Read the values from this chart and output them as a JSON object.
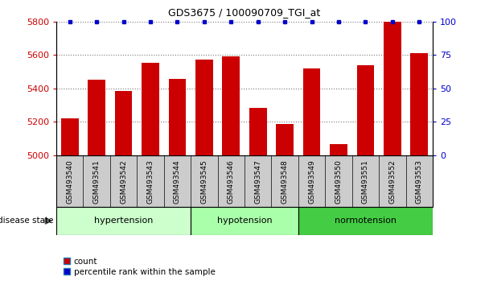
{
  "title": "GDS3675 / 100090709_TGI_at",
  "samples": [
    "GSM493540",
    "GSM493541",
    "GSM493542",
    "GSM493543",
    "GSM493544",
    "GSM493545",
    "GSM493546",
    "GSM493547",
    "GSM493548",
    "GSM493549",
    "GSM493550",
    "GSM493551",
    "GSM493552",
    "GSM493553"
  ],
  "counts": [
    5220,
    5450,
    5385,
    5555,
    5455,
    5570,
    5590,
    5285,
    5185,
    5520,
    5065,
    5540,
    5800,
    5610
  ],
  "percentiles": [
    100,
    100,
    100,
    100,
    100,
    100,
    100,
    100,
    100,
    100,
    100,
    100,
    100,
    100
  ],
  "ylim_left": [
    5000,
    5800
  ],
  "ylim_right": [
    0,
    100
  ],
  "yticks_left": [
    5000,
    5200,
    5400,
    5600,
    5800
  ],
  "yticks_right": [
    0,
    25,
    50,
    75,
    100
  ],
  "bar_color": "#cc0000",
  "dot_color": "#0000cc",
  "groups": [
    {
      "label": "hypertension",
      "start": 0,
      "end": 5
    },
    {
      "label": "hypotension",
      "start": 5,
      "end": 9
    },
    {
      "label": "normotension",
      "start": 9,
      "end": 14
    }
  ],
  "group_colors": [
    "#ccffcc",
    "#aaffaa",
    "#44cc44"
  ],
  "disease_state_label": "disease state",
  "legend_count": "count",
  "legend_percentile": "percentile rank within the sample",
  "label_box_color": "#cccccc",
  "title_fontsize": 9,
  "axis_fontsize": 8,
  "label_fontsize": 6.5,
  "group_fontsize": 8
}
